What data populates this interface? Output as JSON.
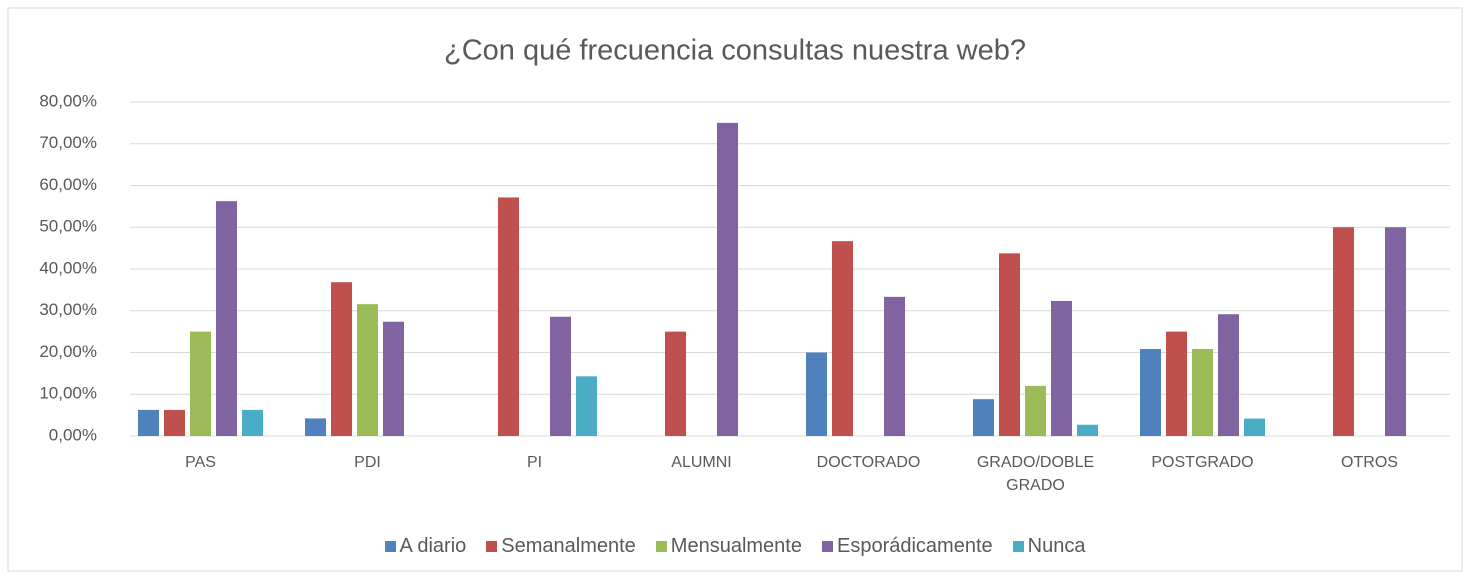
{
  "chart_data": {
    "type": "bar",
    "title": "¿Con qué frecuencia consultas nuestra web?",
    "categories": [
      "PAS",
      "PDI",
      "PI",
      "ALUMNI",
      "DOCTORADO",
      "GRADO/DOBLE GRADO",
      "POSTGRADO",
      "OTROS"
    ],
    "series": [
      {
        "name": "A diario",
        "color": "#4f81bd",
        "values": [
          6.25,
          4.21,
          0,
          0,
          20,
          8.82,
          20.83,
          0
        ]
      },
      {
        "name": "Semanalmente",
        "color": "#c0504d",
        "values": [
          6.25,
          36.84,
          57.14,
          25,
          46.67,
          43.75,
          25,
          50
        ]
      },
      {
        "name": "Mensualmente",
        "color": "#9bbb59",
        "values": [
          25,
          31.58,
          0,
          0,
          0,
          12,
          20.83,
          0
        ]
      },
      {
        "name": "Esporádicamente",
        "color": "#8064a2",
        "values": [
          56.25,
          27.37,
          28.57,
          75,
          33.33,
          32.35,
          29.17,
          50
        ]
      },
      {
        "name": "Nunca",
        "color": "#4bacc6",
        "values": [
          6.25,
          0,
          14.29,
          0,
          0,
          2.7,
          4.17,
          0
        ]
      }
    ],
    "ylim": [
      0,
      80
    ],
    "yticks": [
      {
        "value": 0,
        "label": "0,00%"
      },
      {
        "value": 10,
        "label": "10,00%"
      },
      {
        "value": 20,
        "label": "20,00%"
      },
      {
        "value": 30,
        "label": "30,00%"
      },
      {
        "value": 40,
        "label": "40,00%"
      },
      {
        "value": 50,
        "label": "50,00%"
      },
      {
        "value": 60,
        "label": "60,00%"
      },
      {
        "value": 70,
        "label": "70,00%"
      },
      {
        "value": 80,
        "label": "80,00%"
      }
    ],
    "grid": true,
    "legend": "bottom"
  }
}
